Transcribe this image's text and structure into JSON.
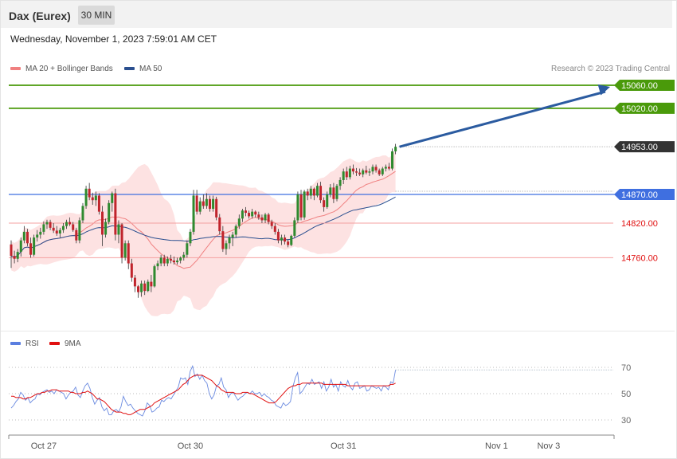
{
  "header": {
    "title": "Dax (Eurex)",
    "timeframe": "30 MIN"
  },
  "datetime": "Wednesday, November 1, 2023 7:59:01 AM CET",
  "copyright": "Research © 2023 Trading Central",
  "colors": {
    "bollinger": "#f08080",
    "ma50": "#2b4f8f",
    "up": "#2f8a2f",
    "down": "#c0242c",
    "target": "#4a9a0a",
    "pivot": "#3f6fe0",
    "support": "#e01010",
    "current": "#333333",
    "arrow": "#2b5ba0",
    "rsi": "#6a8ae0",
    "rsi_ma": "#e01010"
  },
  "price_legend": [
    {
      "label": "MA 20 + Bollinger Bands",
      "color": "#f08080",
      "icon": "line-swatch"
    },
    {
      "label": "MA 50",
      "color": "#2b4f8f",
      "icon": "line-swatch"
    }
  ],
  "rsi_legend": [
    {
      "label": "RSI",
      "color": "#5a7ee0",
      "icon": "line-swatch"
    },
    {
      "label": "9MA",
      "color": "#e01010",
      "icon": "line-swatch"
    }
  ],
  "levels": [
    {
      "label": "15060.00",
      "value": 15060,
      "kind": "target"
    },
    {
      "label": "15020.00",
      "value": 15020,
      "kind": "target"
    },
    {
      "label": "14953.00",
      "value": 14953,
      "kind": "current"
    },
    {
      "label": "14870.00",
      "value": 14870,
      "kind": "pivot"
    },
    {
      "label": "14820.00",
      "value": 14820,
      "kind": "support"
    },
    {
      "label": "14760.00",
      "value": 14760,
      "kind": "support"
    }
  ],
  "chart_data": {
    "type": "candlestick",
    "ylim": [
      14640,
      15060
    ],
    "x_tick_labels": [
      {
        "label": "Oct 27",
        "index": 10
      },
      {
        "label": "Oct 30",
        "index": 55
      },
      {
        "label": "Oct 31",
        "index": 102
      },
      {
        "label": "Nov 1",
        "index": 149
      },
      {
        "label": "Nov 3",
        "index": 165
      }
    ],
    "candles": [
      [
        14783,
        14790,
        14742,
        14763
      ],
      [
        14763,
        14772,
        14750,
        14758
      ],
      [
        14758,
        14775,
        14752,
        14770
      ],
      [
        14770,
        14795,
        14762,
        14790
      ],
      [
        14790,
        14815,
        14785,
        14805
      ],
      [
        14805,
        14810,
        14780,
        14785
      ],
      [
        14785,
        14795,
        14760,
        14765
      ],
      [
        14765,
        14800,
        14762,
        14795
      ],
      [
        14795,
        14808,
        14788,
        14800
      ],
      [
        14800,
        14812,
        14793,
        14805
      ],
      [
        14805,
        14823,
        14800,
        14818
      ],
      [
        14818,
        14826,
        14810,
        14822
      ],
      [
        14822,
        14826,
        14808,
        14812
      ],
      [
        14812,
        14820,
        14803,
        14807
      ],
      [
        14807,
        14815,
        14798,
        14802
      ],
      [
        14802,
        14812,
        14795,
        14808
      ],
      [
        14808,
        14820,
        14803,
        14815
      ],
      [
        14815,
        14826,
        14810,
        14822
      ],
      [
        14822,
        14830,
        14815,
        14818
      ],
      [
        14818,
        14822,
        14805,
        14808
      ],
      [
        14808,
        14812,
        14785,
        14790
      ],
      [
        14790,
        14830,
        14785,
        14825
      ],
      [
        14825,
        14855,
        14820,
        14850
      ],
      [
        14850,
        14885,
        14845,
        14880
      ],
      [
        14880,
        14890,
        14860,
        14865
      ],
      [
        14865,
        14873,
        14852,
        14860
      ],
      [
        14860,
        14875,
        14850,
        14868
      ],
      [
        14868,
        14872,
        14835,
        14840
      ],
      [
        14840,
        14850,
        14780,
        14800
      ],
      [
        14800,
        14828,
        14795,
        14822
      ],
      [
        14822,
        14860,
        14818,
        14855
      ],
      [
        14855,
        14875,
        14840,
        14872
      ],
      [
        14872,
        14880,
        14790,
        14800
      ],
      [
        14800,
        14825,
        14785,
        14818
      ],
      [
        14818,
        14820,
        14750,
        14760
      ],
      [
        14760,
        14790,
        14755,
        14785
      ],
      [
        14785,
        14790,
        14740,
        14750
      ],
      [
        14750,
        14758,
        14718,
        14725
      ],
      [
        14725,
        14730,
        14700,
        14710
      ],
      [
        14710,
        14712,
        14690,
        14700
      ],
      [
        14700,
        14720,
        14692,
        14715
      ],
      [
        14715,
        14720,
        14695,
        14702
      ],
      [
        14702,
        14722,
        14700,
        14718
      ],
      [
        14718,
        14730,
        14700,
        14710
      ],
      [
        14710,
        14748,
        14708,
        14745
      ],
      [
        14745,
        14755,
        14738,
        14750
      ],
      [
        14750,
        14765,
        14745,
        14760
      ],
      [
        14760,
        14765,
        14745,
        14750
      ],
      [
        14750,
        14762,
        14745,
        14758
      ],
      [
        14758,
        14765,
        14750,
        14755
      ],
      [
        14755,
        14762,
        14748,
        14752
      ],
      [
        14752,
        14760,
        14748,
        14755
      ],
      [
        14755,
        14762,
        14750,
        14760
      ],
      [
        14760,
        14770,
        14755,
        14765
      ],
      [
        14765,
        14790,
        14760,
        14785
      ],
      [
        14785,
        14810,
        14780,
        14805
      ],
      [
        14805,
        14878,
        14800,
        14868
      ],
      [
        14868,
        14878,
        14835,
        14840
      ],
      [
        14840,
        14865,
        14835,
        14858
      ],
      [
        14858,
        14870,
        14845,
        14850
      ],
      [
        14850,
        14872,
        14845,
        14862
      ],
      [
        14862,
        14868,
        14840,
        14845
      ],
      [
        14845,
        14868,
        14840,
        14862
      ],
      [
        14862,
        14866,
        14825,
        14830
      ],
      [
        14830,
        14836,
        14800,
        14806
      ],
      [
        14806,
        14815,
        14770,
        14775
      ],
      [
        14775,
        14790,
        14765,
        14785
      ],
      [
        14785,
        14800,
        14775,
        14795
      ],
      [
        14795,
        14805,
        14780,
        14800
      ],
      [
        14800,
        14818,
        14795,
        14815
      ],
      [
        14815,
        14835,
        14810,
        14828
      ],
      [
        14828,
        14845,
        14822,
        14842
      ],
      [
        14842,
        14848,
        14832,
        14838
      ],
      [
        14838,
        14842,
        14828,
        14832
      ],
      [
        14832,
        14845,
        14828,
        14840
      ],
      [
        14840,
        14842,
        14830,
        14835
      ],
      [
        14835,
        14840,
        14826,
        14830
      ],
      [
        14830,
        14835,
        14820,
        14825
      ],
      [
        14825,
        14838,
        14820,
        14835
      ],
      [
        14835,
        14838,
        14818,
        14822
      ],
      [
        14822,
        14826,
        14810,
        14815
      ],
      [
        14815,
        14820,
        14800,
        14805
      ],
      [
        14805,
        14810,
        14785,
        14790
      ],
      [
        14790,
        14800,
        14782,
        14795
      ],
      [
        14795,
        14800,
        14783,
        14788
      ],
      [
        14788,
        14792,
        14778,
        14782
      ],
      [
        14782,
        14800,
        14780,
        14798
      ],
      [
        14798,
        14830,
        14795,
        14825
      ],
      [
        14825,
        14875,
        14820,
        14870
      ],
      [
        14870,
        14878,
        14825,
        14830
      ],
      [
        14830,
        14878,
        14826,
        14875
      ],
      [
        14875,
        14880,
        14860,
        14868
      ],
      [
        14868,
        14885,
        14862,
        14880
      ],
      [
        14880,
        14882,
        14860,
        14868
      ],
      [
        14868,
        14890,
        14865,
        14885
      ],
      [
        14885,
        14892,
        14855,
        14860
      ],
      [
        14860,
        14865,
        14840,
        14848
      ],
      [
        14848,
        14875,
        14845,
        14870
      ],
      [
        14870,
        14888,
        14865,
        14882
      ],
      [
        14882,
        14890,
        14855,
        14862
      ],
      [
        14862,
        14888,
        14858,
        14885
      ],
      [
        14885,
        14900,
        14878,
        14895
      ],
      [
        14895,
        14915,
        14888,
        14910
      ],
      [
        14910,
        14918,
        14895,
        14900
      ],
      [
        14900,
        14920,
        14896,
        14915
      ],
      [
        14915,
        14922,
        14905,
        14910
      ],
      [
        14910,
        14916,
        14902,
        14908
      ],
      [
        14908,
        14915,
        14902,
        14905
      ],
      [
        14905,
        14915,
        14900,
        14912
      ],
      [
        14912,
        14920,
        14905,
        14908
      ],
      [
        14908,
        14915,
        14902,
        14910
      ],
      [
        14910,
        14922,
        14905,
        14918
      ],
      [
        14918,
        14922,
        14908,
        14912
      ],
      [
        14912,
        14915,
        14902,
        14905
      ],
      [
        14905,
        14918,
        14902,
        14915
      ],
      [
        14915,
        14922,
        14910,
        14918
      ],
      [
        14918,
        14925,
        14912,
        14915
      ],
      [
        14915,
        14950,
        14912,
        14945
      ],
      [
        14945,
        14958,
        14940,
        14953
      ]
    ]
  },
  "rsi_data": {
    "type": "line",
    "ylim": [
      20,
      80
    ],
    "y_ticks": [
      {
        "label": "70",
        "value": 70
      },
      {
        "label": "50",
        "value": 50
      },
      {
        "label": "30",
        "value": 30
      }
    ],
    "rsi": [
      39,
      41,
      44,
      46,
      51,
      49,
      45,
      47,
      43,
      45,
      46,
      50,
      49,
      51,
      52,
      53,
      51,
      52,
      50,
      53,
      52,
      51,
      50,
      46,
      49,
      51,
      52,
      55,
      49,
      47,
      52,
      56,
      58,
      54,
      47,
      42,
      45,
      47,
      40,
      37,
      39,
      34,
      34,
      37,
      38,
      36,
      40,
      48,
      44,
      41,
      42,
      39,
      37,
      35,
      34,
      33,
      37,
      43,
      41,
      36,
      37,
      39,
      40,
      45,
      44,
      46,
      47,
      46,
      49,
      52,
      55,
      62,
      61,
      62,
      57,
      67,
      71,
      63,
      65,
      61,
      64,
      60,
      58,
      50,
      46,
      49,
      56,
      57,
      62,
      55,
      53,
      47,
      50,
      51,
      48,
      45,
      47,
      48,
      50,
      51,
      50,
      52,
      50,
      50,
      51,
      48,
      50,
      48,
      47,
      45,
      44,
      41,
      40,
      39,
      43,
      41,
      42,
      44,
      55,
      62,
      66,
      50,
      52,
      55,
      58,
      57,
      61,
      57,
      58,
      59,
      54,
      59,
      52,
      55,
      61,
      55,
      57,
      52,
      59,
      56,
      55,
      60,
      55,
      53,
      58,
      59,
      54,
      55,
      56,
      52,
      53,
      56,
      55,
      54,
      55,
      52,
      56,
      55,
      53,
      59,
      58,
      68
    ],
    "rsi_ma": [
      48,
      48,
      47,
      47,
      47,
      46,
      46,
      47,
      47,
      48,
      49,
      50,
      50,
      51,
      51,
      52,
      52,
      53,
      53,
      53,
      52,
      52,
      52,
      52,
      52,
      51,
      51,
      50,
      50,
      50,
      51,
      51,
      52,
      51,
      50,
      48,
      46,
      46,
      45,
      44,
      42,
      40,
      38,
      37,
      36,
      36,
      36,
      35,
      35,
      34,
      34,
      35,
      36,
      37,
      38,
      38,
      38,
      39,
      40,
      41,
      43,
      44,
      45,
      46,
      47,
      48,
      49,
      50,
      51,
      52,
      53,
      55,
      57,
      58,
      60,
      62,
      63,
      64,
      64,
      64,
      64,
      63,
      62,
      61,
      60,
      58,
      56,
      55,
      53,
      52,
      51,
      51,
      51,
      51,
      50,
      50,
      50,
      51,
      51,
      51,
      50,
      50,
      49,
      48,
      47,
      46,
      45,
      44,
      43,
      43,
      43,
      44,
      46,
      48,
      50,
      52,
      54,
      55,
      56,
      56,
      57,
      57,
      58,
      58,
      58,
      58,
      58,
      58,
      58,
      58,
      58,
      57,
      57,
      57,
      57,
      57,
      57,
      57,
      57,
      57,
      57,
      56,
      56,
      56,
      56,
      56,
      56,
      56,
      56,
      56,
      56,
      56,
      56,
      56,
      56,
      56,
      56,
      56,
      56,
      57,
      57,
      58
    ]
  }
}
